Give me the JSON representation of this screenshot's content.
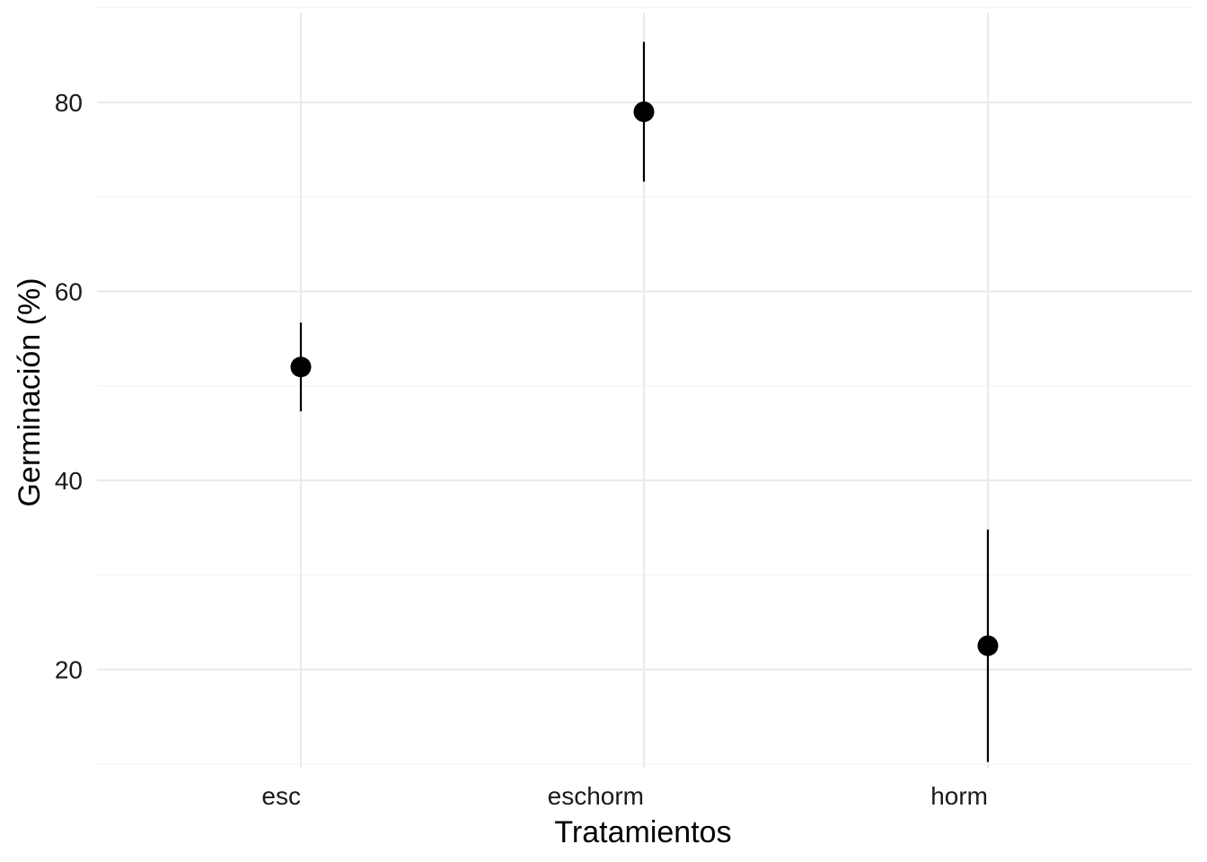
{
  "chart_data": {
    "type": "scatter",
    "title": "",
    "xlabel": "Tratamientos",
    "ylabel": "Germinación (%)",
    "categories": [
      "esc",
      "eschorm",
      "horm"
    ],
    "values": [
      52,
      79,
      22.5
    ],
    "error_lower": [
      47.3,
      71.6,
      10.2
    ],
    "error_upper": [
      56.7,
      86.4,
      34.8
    ],
    "ylim": [
      9.5,
      89.5
    ],
    "y_ticks": [
      20,
      40,
      60,
      80
    ],
    "y_tick_labels": [
      "20",
      "40",
      "60",
      "80"
    ],
    "y_minor_ticks": [
      10,
      30,
      50,
      70,
      90
    ],
    "grid": true,
    "legend": "none",
    "point_color": "#000000",
    "error_bar_color": "#000000",
    "grid_color": "#ebebeb"
  }
}
